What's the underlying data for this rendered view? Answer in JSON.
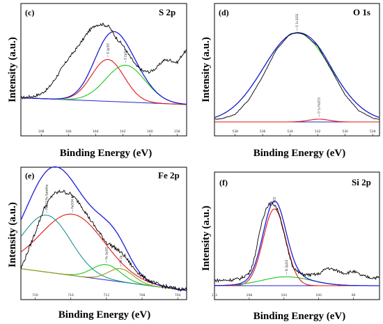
{
  "y_axis_label": "Intensity (a.u.)",
  "x_axis_label": "Binding Energy (eV)",
  "colors": {
    "raw": "#000000",
    "envelope": "#1c1cd6",
    "red": "#e31414",
    "green": "#1fc41f",
    "teal": "#19958f",
    "olive": "#9a9a12",
    "background": "#2626c8"
  },
  "chart_data": [
    {
      "id": "c",
      "type": "line",
      "panel_letter": "(c)",
      "region": "S 2p",
      "xlabel": "Binding Energy (eV)",
      "ylabel": "Intensity (a.u.)",
      "x_reversed": true,
      "xlim": [
        169.5,
        157.3
      ],
      "ylim": [
        0,
        100
      ],
      "ticks": [
        "168",
        "166",
        "164",
        "162",
        "160",
        "158"
      ],
      "tick_values": [
        168,
        166,
        164,
        162,
        160,
        158
      ],
      "background": {
        "x": [
          169.5,
          157.3
        ],
        "y": [
          8,
          0
        ]
      },
      "peaks": [
        {
          "color": "red",
          "center": 163.1,
          "height": 50,
          "width": 1.2,
          "label": "S 2p3/2"
        },
        {
          "color": "green",
          "center": 161.8,
          "height": 44,
          "width": 1.45,
          "label": "S 2p1/2"
        }
      ],
      "raw": {
        "x": [
          169.5,
          169.0,
          168.5,
          168.0,
          167.5,
          167.0,
          166.5,
          166.0,
          165.5,
          165.0,
          164.5,
          164.0,
          163.5,
          163.0,
          162.5,
          162.0,
          161.5,
          161.0,
          160.5,
          160.0,
          159.5,
          159.0,
          158.5,
          158.0,
          157.6,
          157.3
        ],
        "y": [
          8,
          9,
          10,
          13,
          19,
          30,
          43,
          55,
          65,
          76,
          88,
          95,
          96,
          93,
          80,
          71,
          58,
          46,
          40,
          39,
          44,
          53,
          53,
          50,
          60,
          65
        ]
      }
    },
    {
      "id": "d",
      "type": "line",
      "panel_letter": "(d)",
      "region": "O 1s",
      "xlabel": "Binding Energy (eV)",
      "ylabel": "Intensity (a.u.)",
      "x_reversed": true,
      "xlim": [
        539.5,
        527.5
      ],
      "ylim": [
        0,
        100
      ],
      "ticks": [
        "538",
        "536",
        "534",
        "532",
        "530",
        "528"
      ],
      "tick_values": [
        538,
        536,
        534,
        532,
        530,
        528
      ],
      "background": {
        "x": [
          539.5,
          527.5
        ],
        "y": [
          0,
          0
        ]
      },
      "peaks": [
        {
          "color": "green",
          "center": 533.5,
          "height": 96,
          "width": 2.45,
          "label": "O 1s SiO2"
        },
        {
          "color": "red",
          "center": 531.9,
          "height": 3,
          "width": 0.75,
          "label": "O 1s Fe2O3"
        }
      ],
      "raw": {
        "x": [
          539.5,
          539.0,
          538.0,
          537.0,
          536.0,
          535.0,
          534.0,
          533.5,
          533.0,
          532.0,
          531.0,
          530.0,
          529.0,
          528.0,
          527.5
        ],
        "y": [
          3,
          3.5,
          8,
          24,
          49,
          78,
          95,
          96,
          95,
          82,
          56,
          29,
          12,
          4,
          3
        ]
      }
    },
    {
      "id": "e",
      "type": "line",
      "panel_letter": "(e)",
      "region": "Fe 2p",
      "xlabel": "Binding Energy (eV)",
      "ylabel": "Intensity (a.u.)",
      "x_reversed": true,
      "xlim": [
        721.6,
        703.0
      ],
      "ylim": [
        0,
        100
      ],
      "ticks": [
        "720",
        "716",
        "712",
        "708",
        "704"
      ],
      "tick_values": [
        720,
        716,
        712,
        708,
        704
      ],
      "background": {
        "x": [
          721.6,
          703.0
        ],
        "y": [
          20,
          0
        ]
      },
      "peaks": [
        {
          "color": "red",
          "center": 715.8,
          "height": 56,
          "width": 3.6,
          "label": "FeOOH Fe"
        },
        {
          "color": "teal",
          "center": 718.7,
          "height": 52,
          "width": 2.7,
          "label": "Fe2O3 Fe Satellite"
        },
        {
          "color": "green",
          "center": 712.0,
          "height": 14,
          "width": 1.6,
          "label": "Fe 2p3/2"
        },
        {
          "color": "olive",
          "center": 710.4,
          "height": 12,
          "width": 1.4,
          "label": "Fe 2p"
        }
      ],
      "raw": {
        "x": [
          721.6,
          721.0,
          720.0,
          719.0,
          718.0,
          717.0,
          716.0,
          715.0,
          714.0,
          713.0,
          712.0,
          711.0,
          710.0,
          709.0,
          708.0,
          707.0,
          706.0,
          705.0,
          704.0,
          703.0
        ],
        "y": [
          20,
          32,
          53,
          75,
          88,
          91,
          88,
          80,
          67,
          55,
          44,
          39,
          32,
          21,
          13,
          8,
          5,
          3,
          1.5,
          1
        ]
      }
    },
    {
      "id": "f",
      "type": "line",
      "panel_letter": "(f)",
      "region": "Si 2p",
      "xlabel": "Binding Energy (eV)",
      "ylabel": "Intensity (a.u.)",
      "x_reversed": true,
      "xlim": [
        112.0,
        93.0
      ],
      "ylim": [
        0,
        100
      ],
      "ticks": [
        "112",
        "108",
        "104",
        "100",
        "96"
      ],
      "tick_values": [
        112,
        108,
        104,
        100,
        96
      ],
      "background": {
        "x": [
          112.0,
          93.0
        ],
        "y": [
          0,
          0
        ]
      },
      "peaks": [
        {
          "color": "red",
          "center": 105.1,
          "height": 86,
          "width": 1.3,
          "label": "SiO2"
        },
        {
          "color": "green",
          "center": 103.7,
          "height": 10,
          "width": 2.8,
          "label": "Si 2p3/2"
        }
      ],
      "raw": {
        "x": [
          112.0,
          111.0,
          110.0,
          109.0,
          108.0,
          107.5,
          107.0,
          106.5,
          106.0,
          105.5,
          105.0,
          104.5,
          104.0,
          103.5,
          103.0,
          102.5,
          102.0,
          101.0,
          100.0,
          99.0,
          98.0,
          97.0,
          96.0,
          95.0,
          94.0,
          93.0
        ],
        "y": [
          6,
          6,
          6.5,
          8,
          14,
          27,
          50,
          74,
          88,
          93,
          90,
          80,
          58,
          38,
          22,
          16,
          13,
          12,
          13,
          20,
          17,
          14,
          16,
          11,
          9,
          9
        ]
      }
    }
  ]
}
